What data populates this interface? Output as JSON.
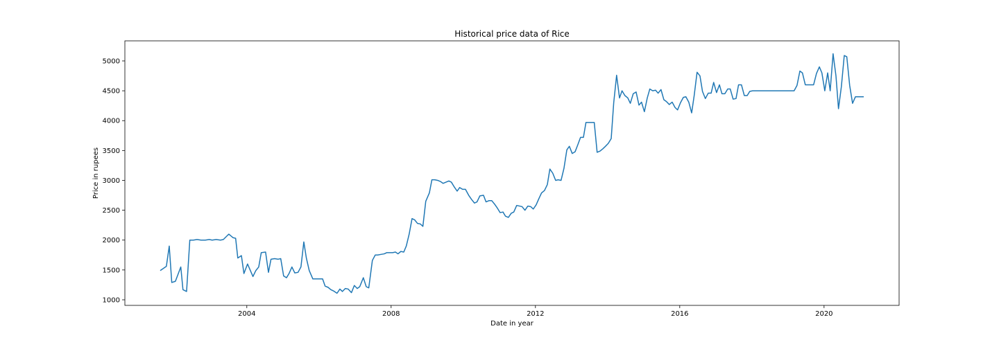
{
  "chart_data": {
    "type": "line",
    "title": "Historical price data of Rice",
    "x_label": "Date in year",
    "y_label": "Price in rupees",
    "xlim": [
      2000.62,
      2022.08
    ],
    "ylim": [
      907,
      5336
    ],
    "xticks": [
      2004,
      2008,
      2012,
      2016,
      2020
    ],
    "yticks": [
      1000,
      1500,
      2000,
      2500,
      3000,
      3500,
      4000,
      4500,
      5000
    ],
    "grid": false,
    "series": [
      {
        "color": "#1f77b4",
        "x": [
          2001.6,
          2001.77,
          2001.85,
          2001.92,
          2002.02,
          2002.17,
          2002.23,
          2002.33,
          2002.42,
          2002.52,
          2002.62,
          2002.73,
          2002.85,
          2002.96,
          2003.04,
          2003.15,
          2003.27,
          2003.35,
          2003.5,
          2003.62,
          2003.69,
          2003.75,
          2003.85,
          2003.92,
          2004.02,
          2004.17,
          2004.25,
          2004.33,
          2004.4,
          2004.52,
          2004.6,
          2004.67,
          2004.77,
          2004.87,
          2004.94,
          2005.02,
          2005.1,
          2005.17,
          2005.25,
          2005.33,
          2005.42,
          2005.5,
          2005.58,
          2005.65,
          2005.73,
          2005.83,
          2005.92,
          2006.0,
          2006.1,
          2006.17,
          2006.25,
          2006.33,
          2006.4,
          2006.5,
          2006.58,
          2006.65,
          2006.73,
          2006.81,
          2006.9,
          2006.98,
          2007.06,
          2007.13,
          2007.23,
          2007.31,
          2007.38,
          2007.48,
          2007.56,
          2007.63,
          2007.71,
          2007.81,
          2007.88,
          2007.96,
          2008.04,
          2008.12,
          2008.19,
          2008.27,
          2008.35,
          2008.42,
          2008.5,
          2008.58,
          2008.65,
          2008.73,
          2008.81,
          2008.88,
          2008.96,
          2009.06,
          2009.13,
          2009.21,
          2009.29,
          2009.37,
          2009.44,
          2009.52,
          2009.6,
          2009.67,
          2009.75,
          2009.83,
          2009.9,
          2009.98,
          2010.06,
          2010.15,
          2010.23,
          2010.31,
          2010.38,
          2010.46,
          2010.56,
          2010.63,
          2010.71,
          2010.79,
          2010.87,
          2010.94,
          2011.02,
          2011.1,
          2011.17,
          2011.25,
          2011.33,
          2011.4,
          2011.48,
          2011.56,
          2011.63,
          2011.71,
          2011.79,
          2011.87,
          2011.94,
          2012.02,
          2012.1,
          2012.17,
          2012.25,
          2012.33,
          2012.4,
          2012.48,
          2012.56,
          2012.63,
          2012.71,
          2012.79,
          2012.87,
          2012.94,
          2013.02,
          2013.1,
          2013.17,
          2013.25,
          2013.33,
          2013.4,
          2013.48,
          2013.56,
          2013.63,
          2013.71,
          2013.79,
          2013.87,
          2013.94,
          2014.02,
          2014.1,
          2014.17,
          2014.25,
          2014.33,
          2014.4,
          2014.48,
          2014.56,
          2014.63,
          2014.71,
          2014.79,
          2014.87,
          2014.94,
          2015.02,
          2015.1,
          2015.17,
          2015.25,
          2015.33,
          2015.4,
          2015.48,
          2015.56,
          2015.63,
          2015.71,
          2015.79,
          2015.87,
          2015.94,
          2016.02,
          2016.1,
          2016.17,
          2016.25,
          2016.33,
          2016.4,
          2016.48,
          2016.56,
          2016.63,
          2016.71,
          2016.79,
          2016.87,
          2016.94,
          2017.02,
          2017.1,
          2017.17,
          2017.25,
          2017.33,
          2017.4,
          2017.48,
          2017.56,
          2017.63,
          2017.71,
          2017.79,
          2017.87,
          2017.94,
          2018.02,
          2019.17,
          2019.25,
          2019.33,
          2019.4,
          2019.48,
          2019.56,
          2019.71,
          2019.79,
          2019.87,
          2019.94,
          2020.02,
          2020.1,
          2020.17,
          2020.25,
          2020.33,
          2020.4,
          2020.48,
          2020.56,
          2020.63,
          2020.71,
          2020.79,
          2020.87,
          2021.1
        ],
        "values": [
          1490,
          1560,
          1900,
          1290,
          1310,
          1550,
          1170,
          1140,
          2000,
          2000,
          2010,
          2000,
          2000,
          2010,
          2000,
          2010,
          2000,
          2010,
          2100,
          2040,
          2030,
          1700,
          1740,
          1440,
          1600,
          1390,
          1490,
          1550,
          1790,
          1800,
          1460,
          1680,
          1690,
          1680,
          1690,
          1400,
          1370,
          1440,
          1550,
          1450,
          1460,
          1550,
          1970,
          1700,
          1490,
          1350,
          1350,
          1350,
          1350,
          1230,
          1210,
          1170,
          1150,
          1110,
          1180,
          1140,
          1190,
          1180,
          1120,
          1240,
          1190,
          1220,
          1370,
          1220,
          1200,
          1660,
          1750,
          1750,
          1760,
          1770,
          1790,
          1790,
          1790,
          1800,
          1770,
          1810,
          1800,
          1900,
          2100,
          2360,
          2340,
          2280,
          2270,
          2230,
          2650,
          2790,
          3010,
          3010,
          3000,
          2980,
          2950,
          2970,
          2990,
          2970,
          2890,
          2820,
          2880,
          2850,
          2850,
          2750,
          2680,
          2620,
          2640,
          2740,
          2750,
          2640,
          2660,
          2660,
          2600,
          2540,
          2460,
          2470,
          2400,
          2380,
          2450,
          2470,
          2580,
          2570,
          2560,
          2500,
          2570,
          2560,
          2520,
          2590,
          2700,
          2790,
          2830,
          2930,
          3190,
          3120,
          3000,
          3010,
          3000,
          3200,
          3510,
          3570,
          3450,
          3480,
          3590,
          3720,
          3720,
          3970,
          3970,
          3970,
          3970,
          3470,
          3490,
          3530,
          3570,
          3620,
          3700,
          4300,
          4760,
          4380,
          4500,
          4420,
          4380,
          4290,
          4450,
          4480,
          4260,
          4310,
          4150,
          4380,
          4530,
          4500,
          4510,
          4460,
          4520,
          4350,
          4320,
          4270,
          4310,
          4220,
          4180,
          4300,
          4390,
          4400,
          4310,
          4130,
          4420,
          4810,
          4750,
          4490,
          4370,
          4460,
          4460,
          4640,
          4470,
          4600,
          4450,
          4450,
          4530,
          4530,
          4360,
          4370,
          4600,
          4600,
          4420,
          4420,
          4490,
          4500,
          4500,
          4590,
          4830,
          4800,
          4600,
          4600,
          4600,
          4790,
          4900,
          4800,
          4500,
          4800,
          4500,
          5120,
          4750,
          4200,
          4570,
          5090,
          5070,
          4590,
          4290,
          4400,
          4400
        ]
      }
    ]
  }
}
